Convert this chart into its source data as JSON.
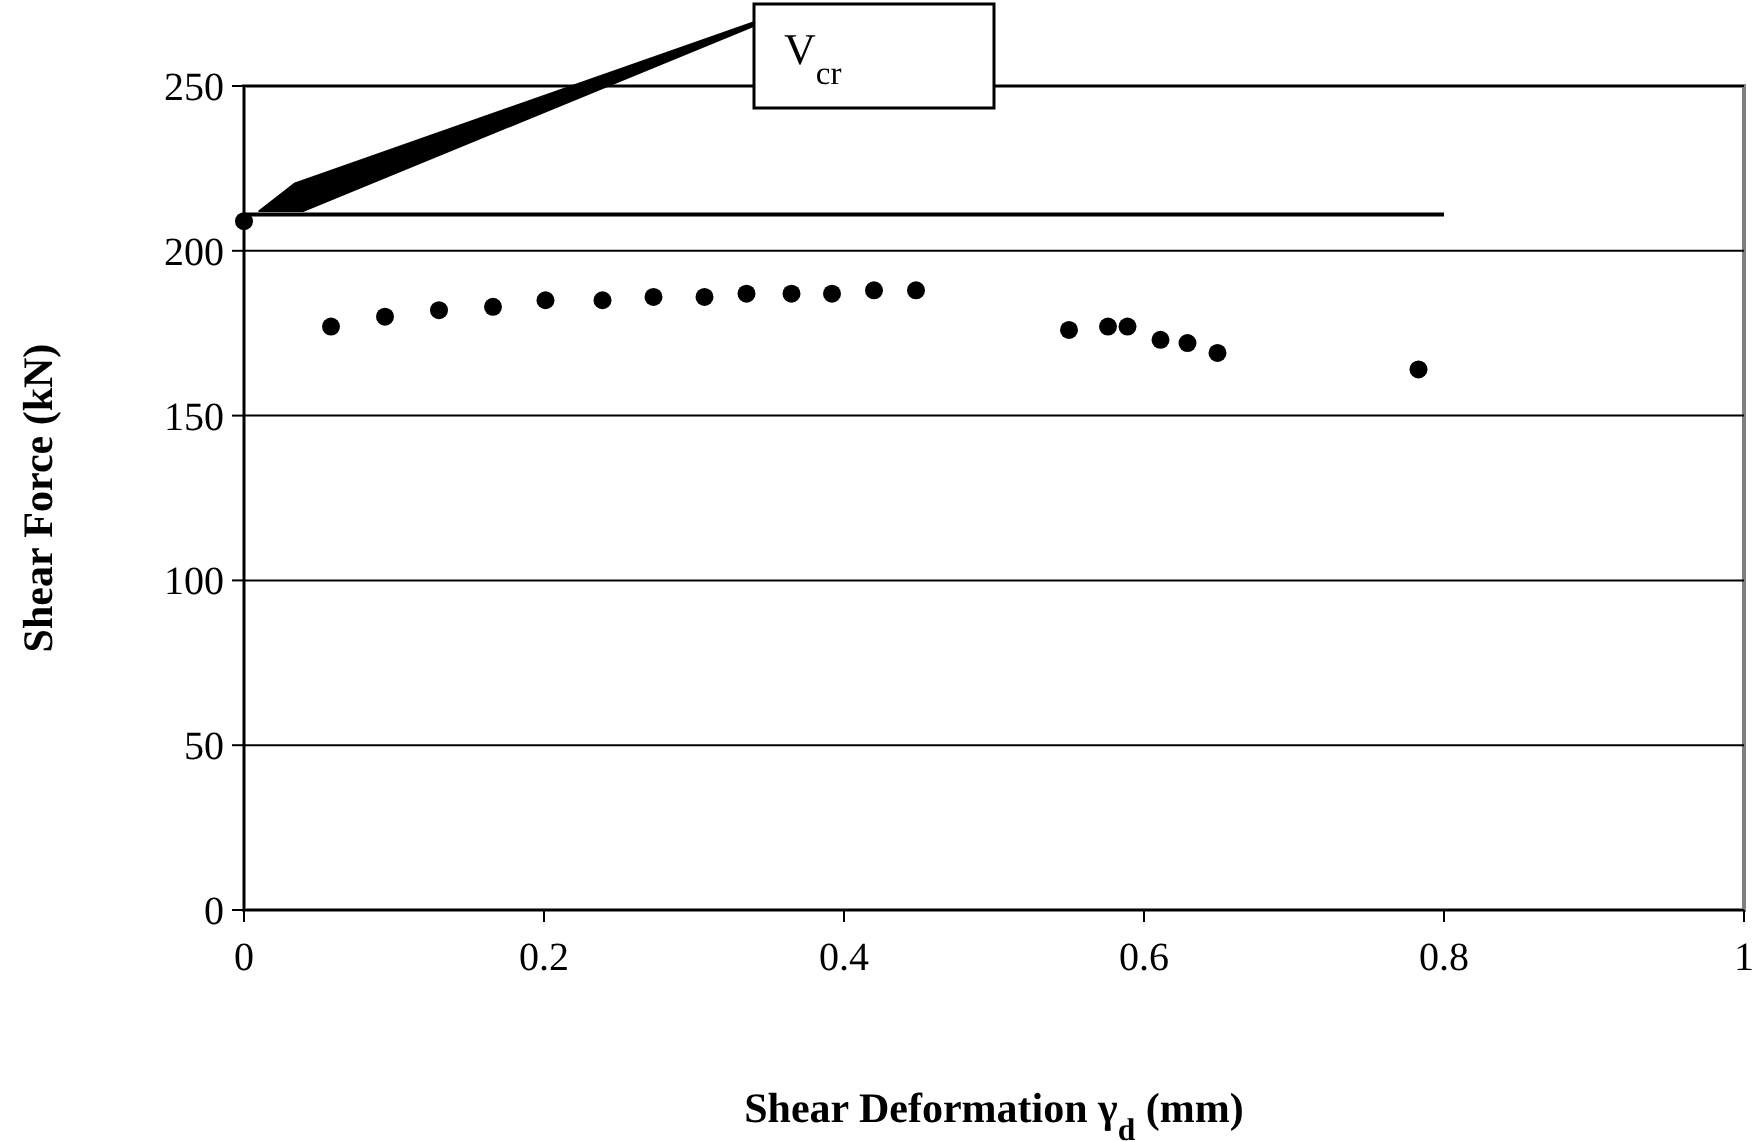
{
  "chart_data": {
    "type": "scatter",
    "xlabel": "Shear Deformation γ$_{d}$ (mm)",
    "ylabel": "Shear Force (kN)",
    "xlim": [
      0,
      1
    ],
    "xticks": [
      0,
      0.2,
      0.4,
      0.6,
      0.8,
      1
    ],
    "ylim": [
      0,
      250
    ],
    "yticks": [
      0,
      50,
      100,
      150,
      200,
      250
    ],
    "grid": "y",
    "marker": "circle",
    "series": [
      {
        "color": "#000000",
        "x": [
          0,
          0.058,
          0.094,
          0.13,
          0.166,
          0.201,
          0.239,
          0.273,
          0.307,
          0.335,
          0.365,
          0.392,
          0.42,
          0.448,
          0.55,
          0.576,
          0.589,
          0.611,
          0.629,
          0.649,
          0.783
        ],
        "values": [
          209,
          177,
          180,
          182,
          183,
          185,
          185,
          186,
          186,
          187,
          187,
          187,
          188,
          188,
          176,
          177,
          177,
          173,
          172,
          169,
          164
        ]
      },
      {
        "type": "line",
        "color": "#000000",
        "marker": "none",
        "x": [
          0,
          0.8
        ],
        "values": [
          211,
          211
        ]
      }
    ],
    "annotations": [
      {
        "text": "V$_{cr}$",
        "x": 0.01,
        "y": 212
      }
    ]
  }
}
